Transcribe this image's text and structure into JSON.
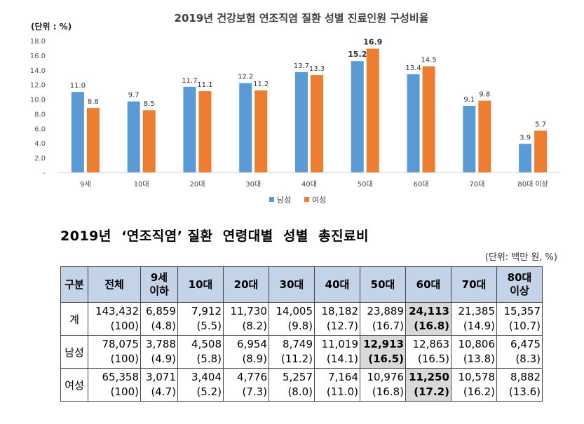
{
  "chart_data": {
    "type": "bar",
    "title": "2019년 건강보험 연조직염 질환 성별 진료인원 구성비율",
    "ylabel": "(단위 : %)",
    "ylim": [
      0,
      18
    ],
    "yticks": [
      "-",
      "2.0",
      "4.0",
      "6.0",
      "8.0",
      "10.0",
      "12.0",
      "14.0",
      "16.0",
      "18.0"
    ],
    "categories": [
      "9세",
      "10대",
      "20대",
      "30대",
      "40대",
      "50대",
      "60대",
      "70대",
      "80대 이상"
    ],
    "series": [
      {
        "name": "남성",
        "color": "#5b9bd5",
        "values": [
          11.0,
          9.7,
          11.7,
          12.2,
          13.7,
          15.2,
          13.4,
          9.1,
          3.9
        ],
        "labels": [
          "11.0",
          "9.7",
          "11.7",
          "12.2",
          "13.7",
          "15.2",
          "13.4",
          "9.1",
          "3.9"
        ]
      },
      {
        "name": "여성",
        "color": "#ed7d31",
        "values": [
          8.8,
          8.5,
          11.1,
          11.2,
          13.3,
          16.9,
          14.5,
          9.8,
          5.7
        ],
        "labels": [
          "8.8",
          "8.5",
          "11.1",
          "11.2",
          "13.3",
          "16.9",
          "14.5",
          "9.8",
          "5.7"
        ]
      }
    ],
    "legend_position": "bottom-center"
  },
  "table": {
    "title": "2019년  ‘연조직염’ 질환  연령대별  성별  총진료비",
    "unit": "(단위: 백만 원, %)",
    "headers": [
      {
        "line1": "구분",
        "line2": ""
      },
      {
        "line1": "전체",
        "line2": ""
      },
      {
        "line1": "9세",
        "line2": "이하"
      },
      {
        "line1": "10대",
        "line2": ""
      },
      {
        "line1": "20대",
        "line2": ""
      },
      {
        "line1": "30대",
        "line2": ""
      },
      {
        "line1": "40대",
        "line2": ""
      },
      {
        "line1": "50대",
        "line2": ""
      },
      {
        "line1": "60대",
        "line2": ""
      },
      {
        "line1": "70대",
        "line2": ""
      },
      {
        "line1": "80대",
        "line2": "이상"
      }
    ],
    "rows": [
      {
        "label": "계",
        "values": [
          "143,432",
          "6,859",
          "7,912",
          "11,730",
          "14,005",
          "18,182",
          "23,889",
          "24,113",
          "21,385",
          "15,357"
        ],
        "shares": [
          "(100)",
          "(4.8)",
          "(5.5)",
          "(8.2)",
          "(9.8)",
          "(12.7)",
          "(16.7)",
          "(16.8)",
          "(14.9)",
          "(10.7)"
        ],
        "highlight": 7
      },
      {
        "label": "남성",
        "values": [
          "78,075",
          "3,788",
          "4,508",
          "6,954",
          "8,749",
          "11,019",
          "12,913",
          "12,863",
          "10,806",
          "6,475"
        ],
        "shares": [
          "(100)",
          "(4.9)",
          "(5.8)",
          "(8.9)",
          "(11.2)",
          "(14.1)",
          "(16.5)",
          "(16.5)",
          "(13.8)",
          "(8.3)"
        ],
        "highlight": 6
      },
      {
        "label": "여성",
        "values": [
          "65,358",
          "3,071",
          "3,404",
          "4,776",
          "5,257",
          "7,164",
          "10,976",
          "11,250",
          "10,578",
          "8,882"
        ],
        "shares": [
          "(100)",
          "(4.7)",
          "(5.2)",
          "(7.3)",
          "(8.0)",
          "(11.0)",
          "(16.8)",
          "(17.2)",
          "(16.2)",
          "(13.6)"
        ],
        "highlight": 7
      }
    ]
  }
}
